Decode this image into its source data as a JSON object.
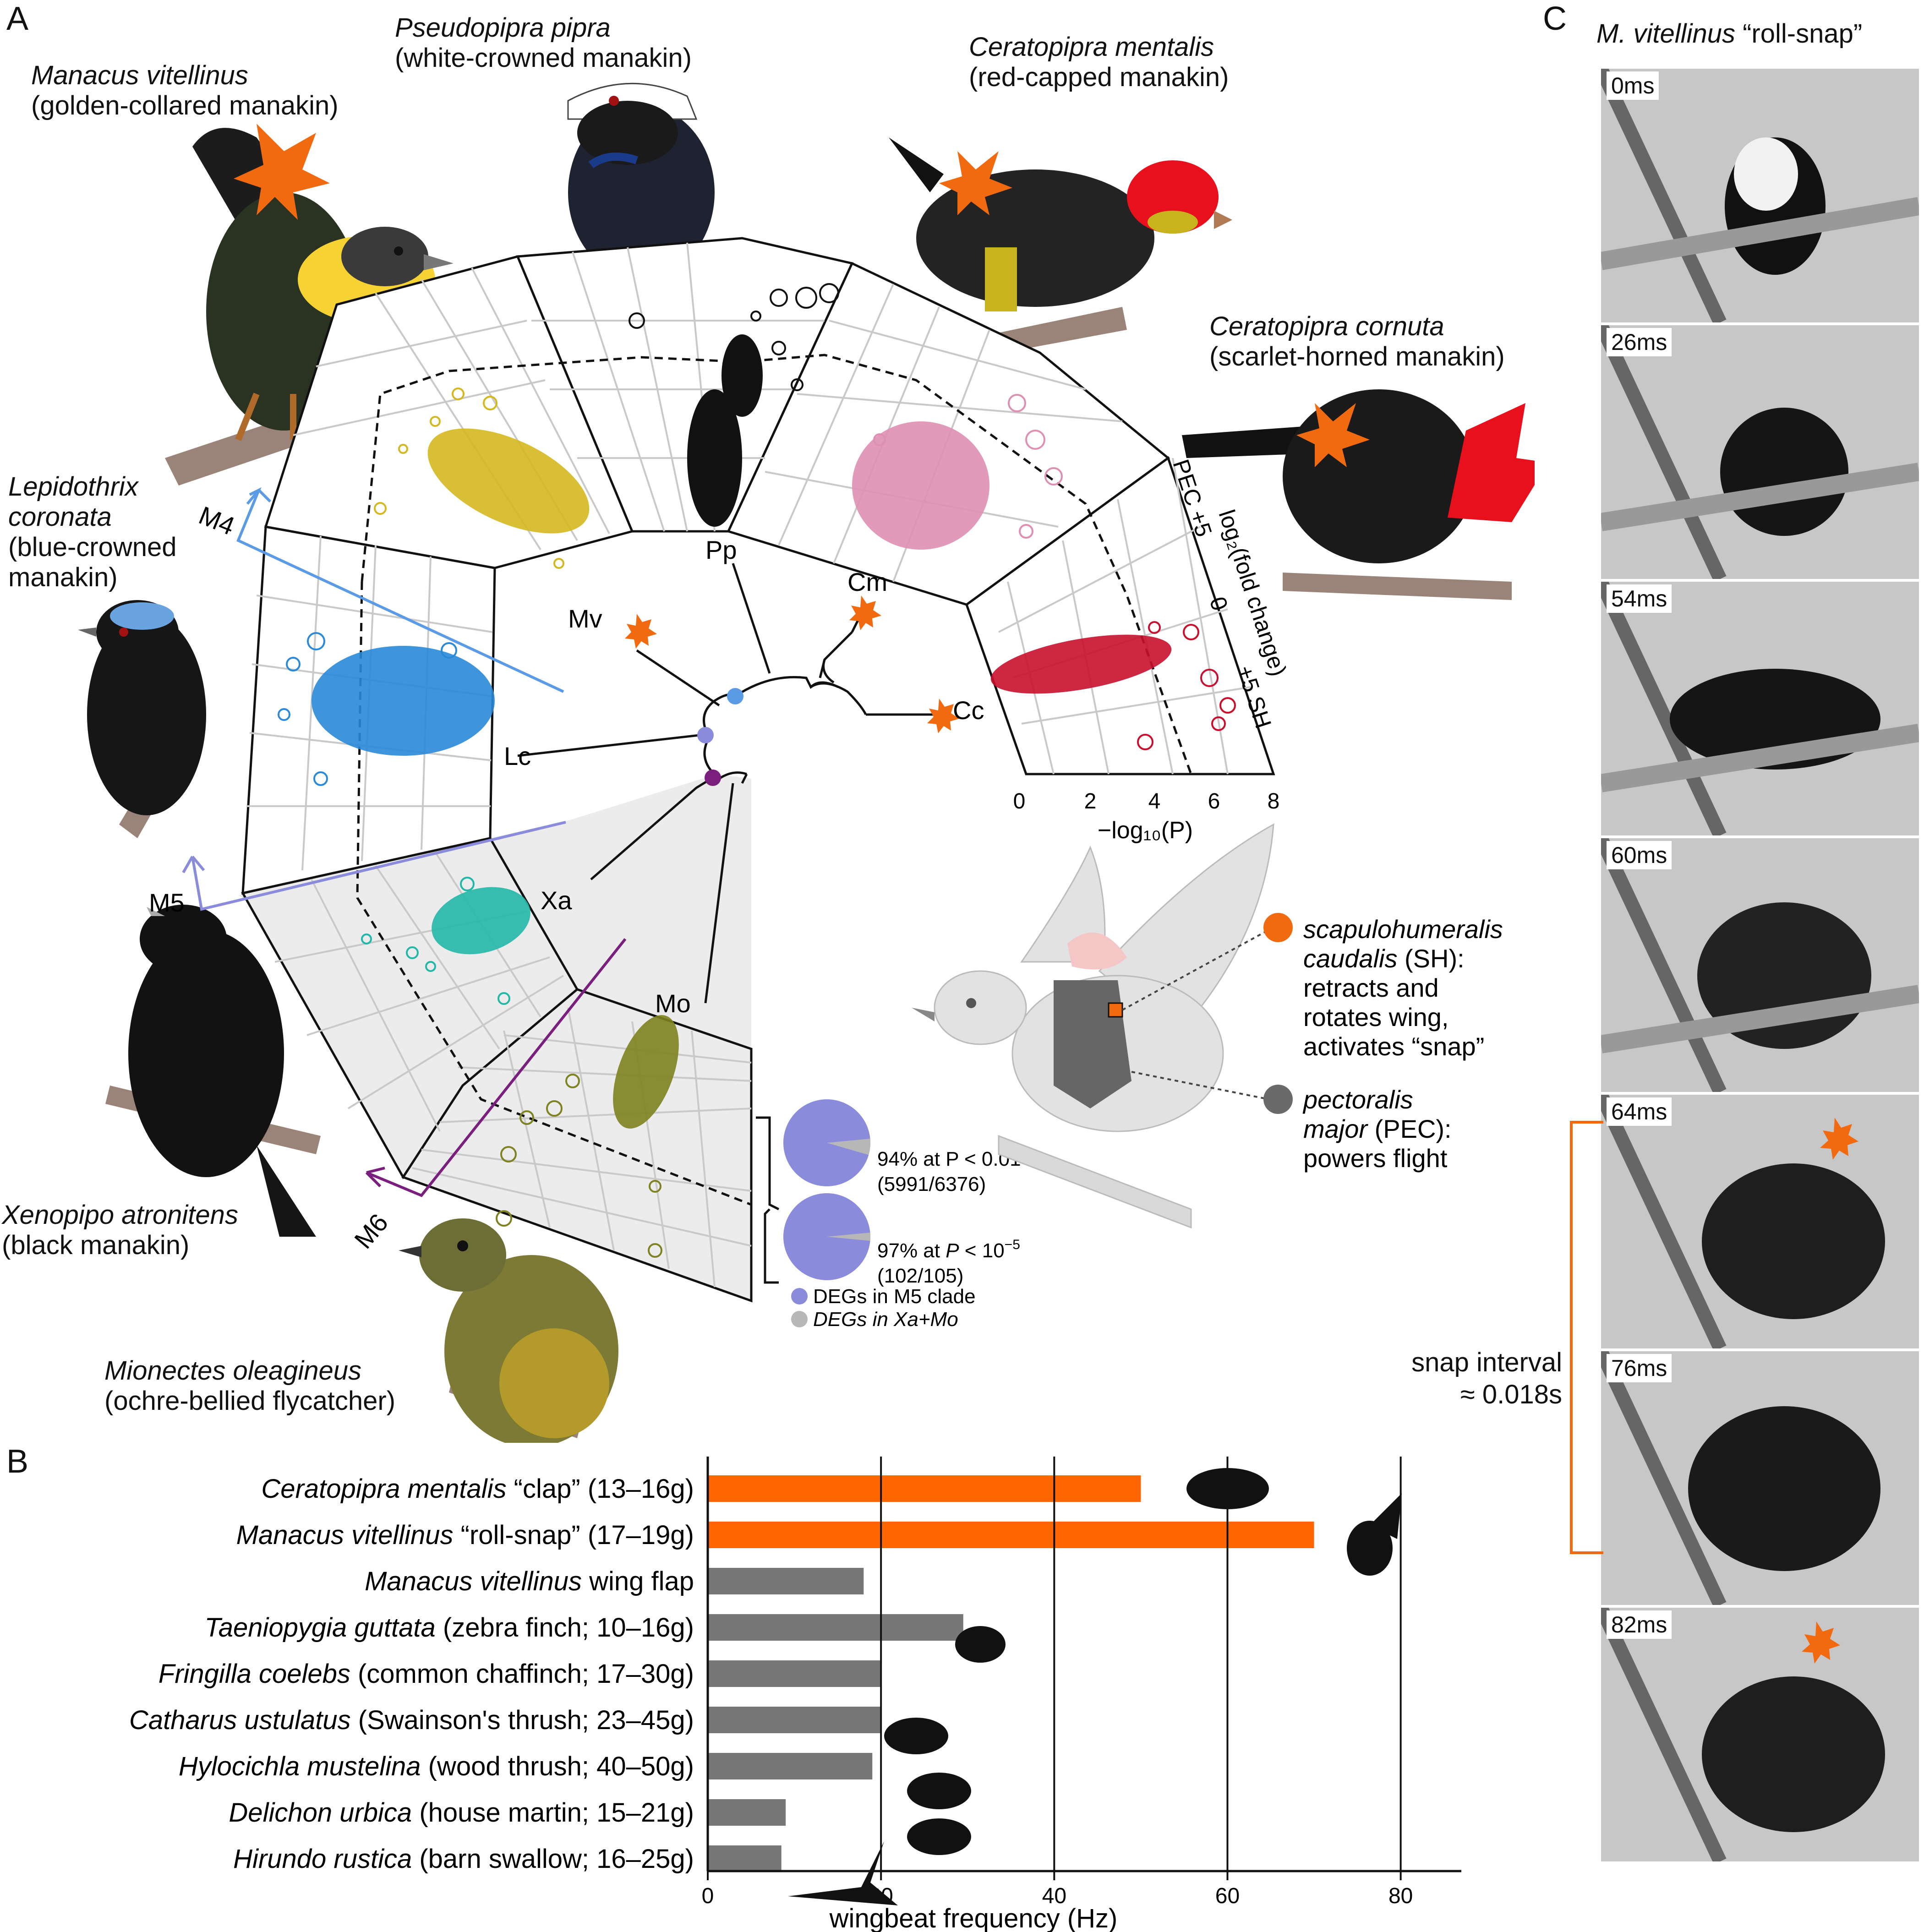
{
  "panels": {
    "a": "A",
    "b": "B",
    "c": "C"
  },
  "species": {
    "mv": {
      "sci": "Manacus vitellinus",
      "com": "(golden-collared manakin)"
    },
    "pp": {
      "sci": "Pseudopipra pipra",
      "com": "(white-crowned manakin)"
    },
    "cm": {
      "sci": "Ceratopipra mentalis",
      "com": "(red-capped manakin)"
    },
    "cc": {
      "sci": "Ceratopipra cornuta",
      "com": "(scarlet-horned manakin)"
    },
    "lc": {
      "sci1": "Lepidothrix",
      "sci2": "coronata",
      "com1": "(blue-crowned",
      "com2": "manakin)"
    },
    "xa": {
      "sci": "Xenopipo atronitens",
      "com": "(black manakin)"
    },
    "mo": {
      "sci": "Mionectes oleagineus",
      "com": "(ochre-bellied flycatcher)"
    }
  },
  "tree": {
    "tips": {
      "mv": "Mv",
      "pp": "Pp",
      "cm": "Cm",
      "cc": "Cc",
      "lc": "Lc",
      "xa": "Xa",
      "mo": "Mo"
    },
    "clades": {
      "m4": "M4",
      "m5": "M5",
      "m6": "M6"
    },
    "colors": {
      "m4": "#5b9be6",
      "m5": "#8b8bdc",
      "m6": "#7b1f7f",
      "snap": "#f26a10"
    }
  },
  "volcano": {
    "xlabel": "−log₁₀(P)",
    "ylabel": "log₂(fold change)",
    "x_ticks": [
      "0",
      "2",
      "4",
      "6",
      "8"
    ],
    "y_ticks": {
      "top": "PEC +5",
      "mid": "0",
      "bottom": "+5 SH"
    },
    "colors": {
      "mv": "#d4b81f",
      "pp": "#111111",
      "cm": "#de8fb2",
      "cc": "#c8102e",
      "lc": "#2a8ad8",
      "xa": "#22b8a8",
      "mo": "#7f8220"
    }
  },
  "pies": [
    {
      "label": "94% at P < 0.01",
      "count": "(5991/6376)",
      "fraction": 0.94
    },
    {
      "label_prefix": "97% at ",
      "label_var": "P",
      "label_suffix": " < 10",
      "label_exp": "−5",
      "count": "(102/105)",
      "fraction": 0.97
    }
  ],
  "pie_legend": [
    {
      "label": "DEGs in M5 clade",
      "color": "#8b8bdc"
    },
    {
      "label": "DEGs in Xa+Mo",
      "color": "#b7b7b7"
    }
  ],
  "muscles": {
    "sh": {
      "l1": "scapulohumeralis",
      "l2": "caudalis",
      "l2b": " (SH):",
      "l3": "retracts and",
      "l4": "rotates wing,",
      "l5": "activates “snap”",
      "color": "#f26a10"
    },
    "pec": {
      "l1": "pectoralis",
      "l2": "major",
      "l2b": " (PEC):",
      "l3": "powers flight",
      "color": "#6a6a6a"
    }
  },
  "chart_data": {
    "type": "bar",
    "orientation": "horizontal",
    "xlabel": "wingbeat frequency (Hz)",
    "xlim": [
      0,
      87
    ],
    "x_ticks": [
      0,
      20,
      40,
      60,
      80
    ],
    "grid": "vertical",
    "categories": [
      {
        "sci": "Ceratopipra mentalis",
        "rest": " “clap” (13–16g)"
      },
      {
        "sci": "Manacus vitellinus",
        "rest": " “roll-snap” (17–19g)"
      },
      {
        "sci": "Manacus vitellinus",
        "rest": " wing flap"
      },
      {
        "sci": "Taeniopygia guttata",
        "rest": " (zebra finch; 10–16g)"
      },
      {
        "sci": "Fringilla coelebs",
        "rest": " (common chaffinch; 17–30g)"
      },
      {
        "sci": "Catharus ustulatus",
        "rest": " (Swainson's thrush; 23–45g)"
      },
      {
        "sci": "Hylocichla mustelina",
        "rest": " (wood thrush; 40–50g)"
      },
      {
        "sci": "Delichon urbica",
        "rest": " (house martin; 15–21g)"
      },
      {
        "sci": "Hirundo rustica",
        "rest": " (barn swallow; 16–25g)"
      }
    ],
    "values": [
      50,
      70,
      18,
      29.5,
      20,
      20,
      19,
      9,
      8.5
    ],
    "colors": [
      "#ff6600",
      "#ff6600",
      "#777777",
      "#777777",
      "#777777",
      "#777777",
      "#777777",
      "#777777",
      "#777777"
    ]
  },
  "panel_c": {
    "title_sci": "M. vitellinus",
    "title_rest": " “roll-snap”",
    "frames": [
      "0ms",
      "26ms",
      "54ms",
      "60ms",
      "64ms",
      "76ms",
      "82ms"
    ],
    "snap_label_1": "snap interval",
    "snap_label_2": "≈ 0.018s"
  }
}
